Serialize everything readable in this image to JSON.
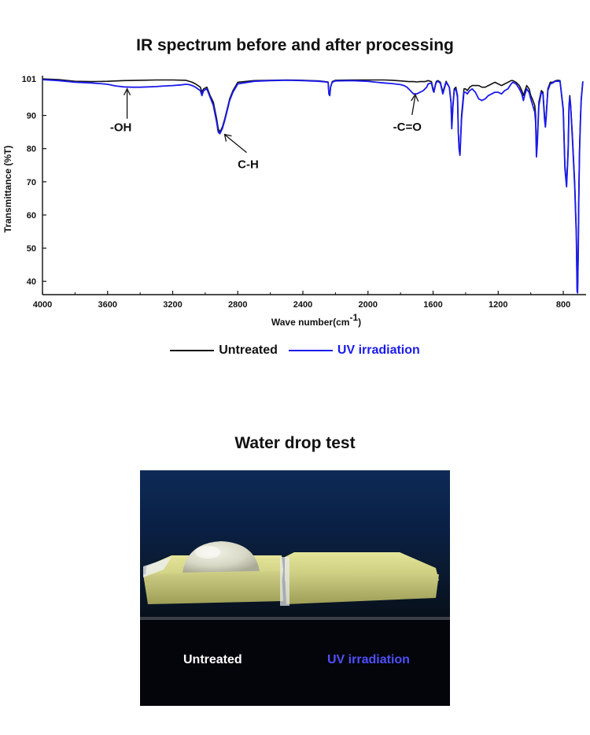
{
  "chart_data": {
    "type": "line",
    "title": "IR spectrum before and after processing",
    "xlabel": "Wave number(cm",
    "xlabel_sup": "-1",
    "xlabel_close": ")",
    "ylabel": "Transmittance (%T)",
    "xlim": [
      4000,
      660
    ],
    "ylim": [
      36,
      102
    ],
    "x_ticks": [
      4000,
      3600,
      3200,
      2800,
      2400,
      2000,
      1600,
      1200,
      800
    ],
    "y_ticks": [
      101,
      90,
      80,
      70,
      60,
      50,
      40
    ],
    "grid": false,
    "legend_position": "bottom",
    "series": [
      {
        "name": "Untreated",
        "color": "#111111",
        "x": [
          4000,
          3900,
          3800,
          3700,
          3600,
          3500,
          3400,
          3300,
          3200,
          3120,
          3080,
          3060,
          3030,
          3020,
          3010,
          2990,
          2970,
          2950,
          2930,
          2920,
          2910,
          2895,
          2880,
          2870,
          2860,
          2850,
          2830,
          2800,
          2700,
          2600,
          2500,
          2400,
          2300,
          2245,
          2240,
          2235,
          2230,
          2220,
          2200,
          2100,
          2000,
          1950,
          1900,
          1850,
          1800,
          1750,
          1720,
          1700,
          1680,
          1650,
          1630,
          1610,
          1600,
          1595,
          1585,
          1580,
          1570,
          1555,
          1540,
          1520,
          1500,
          1490,
          1485,
          1478,
          1470,
          1460,
          1450,
          1445,
          1440,
          1435,
          1425,
          1410,
          1400,
          1390,
          1375,
          1360,
          1340,
          1320,
          1300,
          1280,
          1260,
          1240,
          1220,
          1200,
          1180,
          1160,
          1140,
          1120,
          1110,
          1090,
          1070,
          1055,
          1045,
          1035,
          1025,
          1010,
          1000,
          990,
          975,
          970,
          965,
          960,
          950,
          935,
          925,
          915,
          910,
          905,
          895,
          880,
          865,
          850,
          835,
          820,
          800,
          790,
          780,
          770,
          765,
          760,
          755,
          745,
          730,
          720,
          715,
          712,
          708,
          705,
          700,
          695,
          690,
          680
        ],
        "values": [
          101,
          100.8,
          100.3,
          100.2,
          100.3,
          100.5,
          100.6,
          100.7,
          100.7,
          100.6,
          100,
          99.5,
          98.5,
          97,
          98,
          98.5,
          96,
          94,
          89,
          86,
          85,
          86.5,
          89,
          91,
          93,
          95,
          97.5,
          100,
          100.5,
          100.6,
          100.7,
          100.6,
          100.4,
          100.1,
          96.5,
          96,
          98.5,
          100.2,
          100.6,
          100.7,
          100.7,
          100.7,
          100.7,
          100.6,
          100.4,
          100.2,
          100.2,
          100.1,
          100.2,
          100.2,
          100.5,
          100.2,
          98,
          97.5,
          99.5,
          100.3,
          100.5,
          100,
          97,
          100.3,
          98.5,
          94,
          87,
          93,
          98,
          98.5,
          96,
          85,
          80,
          78,
          90,
          98,
          98,
          97.5,
          98.5,
          99,
          99,
          99,
          98.5,
          98.5,
          99,
          99.5,
          100,
          99.5,
          99,
          99.5,
          100,
          100.5,
          100.5,
          100,
          99,
          97.5,
          96,
          97.5,
          99,
          98,
          96,
          95,
          93,
          90,
          78.5,
          82,
          94,
          97.5,
          97,
          90,
          87,
          90,
          98,
          100,
          100,
          100.4,
          100.6,
          100.5,
          92,
          75,
          69,
          80,
          93,
          96,
          93.5,
          85,
          70,
          55,
          38,
          37,
          50,
          65,
          80,
          89,
          95,
          100.3
        ]
      },
      {
        "name": "UV irradiation",
        "color": "#1a1aee",
        "x": [
          4000,
          3900,
          3800,
          3700,
          3650,
          3600,
          3550,
          3500,
          3450,
          3400,
          3350,
          3300,
          3250,
          3200,
          3150,
          3120,
          3100,
          3080,
          3060,
          3030,
          3020,
          3010,
          2990,
          2970,
          2950,
          2930,
          2920,
          2910,
          2895,
          2880,
          2870,
          2860,
          2850,
          2830,
          2800,
          2700,
          2600,
          2500,
          2400,
          2300,
          2245,
          2240,
          2235,
          2230,
          2220,
          2200,
          2100,
          2000,
          1950,
          1900,
          1850,
          1800,
          1780,
          1760,
          1740,
          1720,
          1700,
          1680,
          1660,
          1640,
          1630,
          1610,
          1600,
          1595,
          1585,
          1580,
          1570,
          1555,
          1540,
          1520,
          1500,
          1490,
          1485,
          1478,
          1470,
          1460,
          1450,
          1445,
          1440,
          1435,
          1425,
          1410,
          1400,
          1390,
          1375,
          1360,
          1340,
          1320,
          1300,
          1280,
          1260,
          1240,
          1220,
          1200,
          1180,
          1160,
          1140,
          1120,
          1110,
          1090,
          1070,
          1055,
          1045,
          1035,
          1025,
          1010,
          1000,
          990,
          975,
          970,
          965,
          960,
          950,
          935,
          925,
          915,
          910,
          905,
          895,
          880,
          865,
          850,
          835,
          820,
          800,
          790,
          780,
          770,
          765,
          760,
          755,
          745,
          730,
          720,
          715,
          712,
          708,
          705,
          700,
          695,
          690,
          680
        ],
        "values": [
          100.8,
          100.5,
          100,
          99.8,
          99.6,
          99.4,
          98.9,
          98.6,
          98.5,
          98.5,
          98.6,
          98.7,
          98.9,
          99,
          99.2,
          99.4,
          99.3,
          99,
          98.5,
          97.5,
          96,
          97.5,
          98,
          95.5,
          93,
          88,
          85,
          84.5,
          86,
          88.5,
          90.5,
          92.5,
          94.5,
          97,
          99.5,
          100.3,
          100.5,
          100.6,
          100.5,
          100.3,
          100,
          96.5,
          96,
          98.5,
          100,
          100.4,
          100.5,
          100.3,
          100,
          99.8,
          99.6,
          99.3,
          99,
          98.5,
          97.5,
          96.5,
          96.5,
          97,
          97.5,
          98.5,
          99.5,
          99.8,
          97.5,
          97,
          99.2,
          100,
          100.3,
          99.7,
          96.5,
          100,
          98.5,
          94,
          86,
          93,
          97.5,
          98,
          95.5,
          85,
          80,
          78,
          89,
          97,
          97,
          96.5,
          97.5,
          98,
          97,
          95,
          94.5,
          95,
          96,
          96.5,
          97,
          97,
          96.5,
          97.5,
          98,
          99.5,
          100,
          99.5,
          98,
          96.5,
          94.5,
          96.5,
          98,
          97,
          95,
          93.5,
          91,
          88,
          77.5,
          81,
          93,
          97,
          96.5,
          89,
          86.5,
          89.5,
          97.5,
          99.5,
          99.8,
          100.3,
          100.3,
          100.3,
          91.5,
          74,
          68.5,
          79,
          92.5,
          95.5,
          93,
          84,
          69,
          54,
          37,
          36.5,
          49,
          64,
          79,
          88,
          94.5,
          100.2
        ]
      }
    ],
    "annotations": [
      {
        "text": "-OH",
        "x": 3480,
        "y": 98.5
      },
      {
        "text": "C-H",
        "x": 2910,
        "y": 85
      },
      {
        "text": "-C=O",
        "x": 1710,
        "y": 96.8
      }
    ]
  },
  "water_drop": {
    "title": "Water drop test",
    "label_left": "Untreated",
    "label_right": "UV irradiation",
    "label_left_color": "#ffffff",
    "label_right_color": "#4f4fff"
  }
}
